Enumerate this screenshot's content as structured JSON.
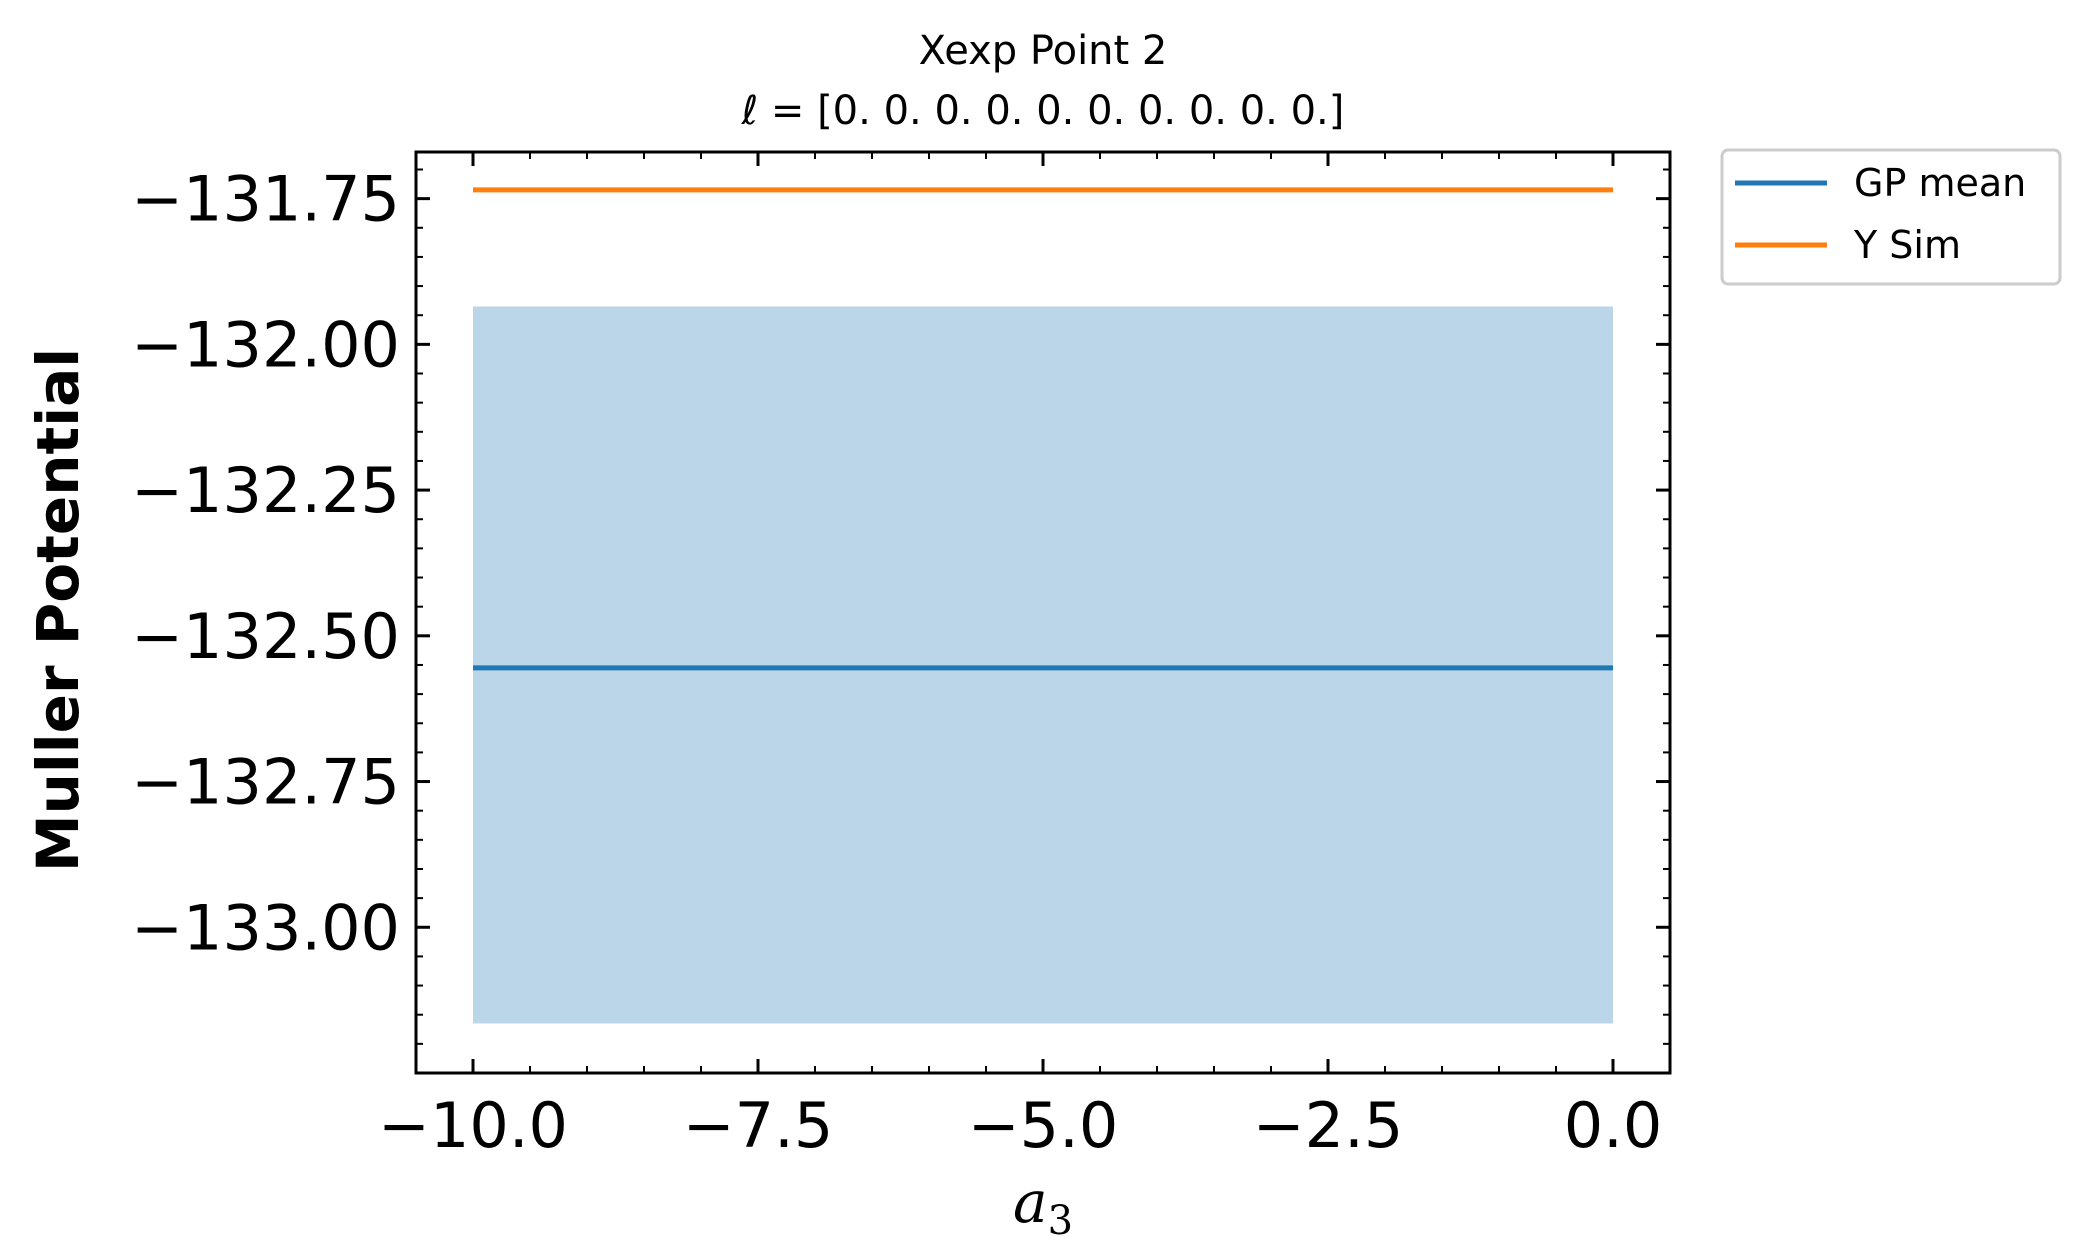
{
  "chart_data": {
    "type": "line",
    "title": "Xexp Point 2",
    "subtitle": "ℓ = [0. 0. 0. 0. 0. 0. 0. 0. 0. 0.]",
    "xlabel": "a",
    "xlabel_subscript": "3",
    "ylabel": "Muller Potential",
    "xlim": [
      -10.5,
      0.5
    ],
    "ylim": [
      -133.25,
      -131.67
    ],
    "x_ticks": [
      -10.0,
      -7.5,
      -5.0,
      -2.5,
      0.0
    ],
    "x_tick_labels": [
      "−10.0",
      "−7.5",
      "−5.0",
      "−2.5",
      "0.0"
    ],
    "y_ticks": [
      -131.75,
      -132.0,
      -132.25,
      -132.5,
      -132.75,
      -133.0
    ],
    "y_tick_labels": [
      "−131.75",
      "−132.00",
      "−132.25",
      "−132.50",
      "−132.75",
      "−133.00"
    ],
    "x_minor_step": 0.5,
    "y_minor_step": 0.05,
    "grid": false,
    "legend_position": "outside top-right",
    "series": [
      {
        "name": "GP mean",
        "color": "#1f77b4",
        "x": [
          -10.0,
          0.0
        ],
        "y": [
          -132.555,
          -132.555
        ]
      },
      {
        "name": "Y Sim",
        "color": "#ff7f0e",
        "x": [
          -10.0,
          0.0
        ],
        "y": [
          -131.735,
          -131.735
        ]
      }
    ],
    "band": {
      "color": "#1f77b4",
      "opacity": 0.3,
      "x": [
        -10.0,
        0.0
      ],
      "y_low": -133.165,
      "y_high": -131.935
    }
  }
}
